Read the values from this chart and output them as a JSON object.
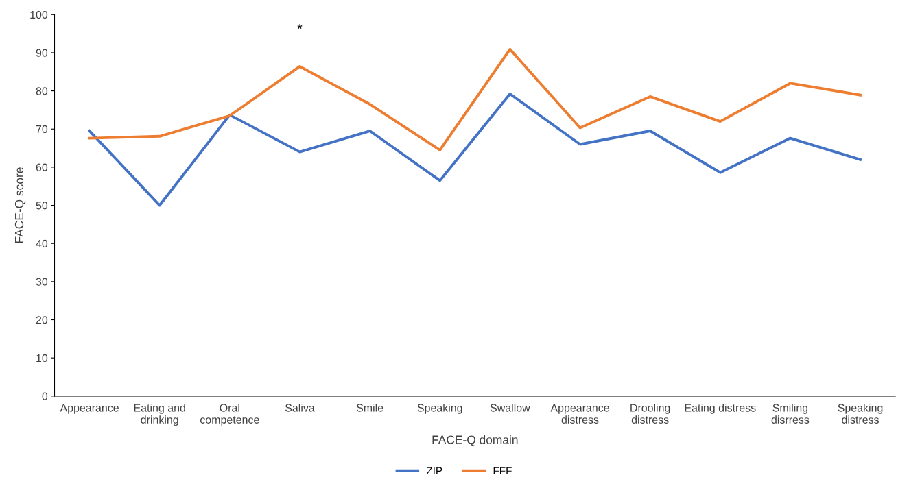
{
  "chart_data": {
    "type": "line",
    "xlabel": "FACE-Q domain",
    "ylabel": "FACE-Q score",
    "categories": [
      "Appearance",
      "Eating and\ndrinking",
      "Oral\ncompetence",
      "Saliva",
      "Smile",
      "Speaking",
      "Swallow",
      "Appearance\ndistress",
      "Drooling\ndistress",
      "Eating distress",
      "Smiling\ndisrress",
      "Speaking\ndistress"
    ],
    "series": [
      {
        "name": "ZIP",
        "color": "#4472c4",
        "values": [
          69.5,
          50,
          73.7,
          64,
          69.5,
          56.5,
          79.2,
          66,
          69.5,
          58.6,
          67.6,
          62
        ]
      },
      {
        "name": "FFF",
        "color": "#ed7d31",
        "values": [
          67.6,
          68.1,
          73.5,
          86.4,
          76.5,
          64.5,
          90.9,
          70.3,
          78.5,
          72,
          82,
          78.9
        ]
      }
    ],
    "ylim": [
      0,
      100
    ],
    "yticks": [
      0,
      10,
      20,
      30,
      40,
      50,
      60,
      70,
      80,
      90,
      100
    ],
    "annotations": [
      "*"
    ],
    "grid": false,
    "legend": "bottom",
    "marker": "none",
    "line_style": "solid"
  }
}
